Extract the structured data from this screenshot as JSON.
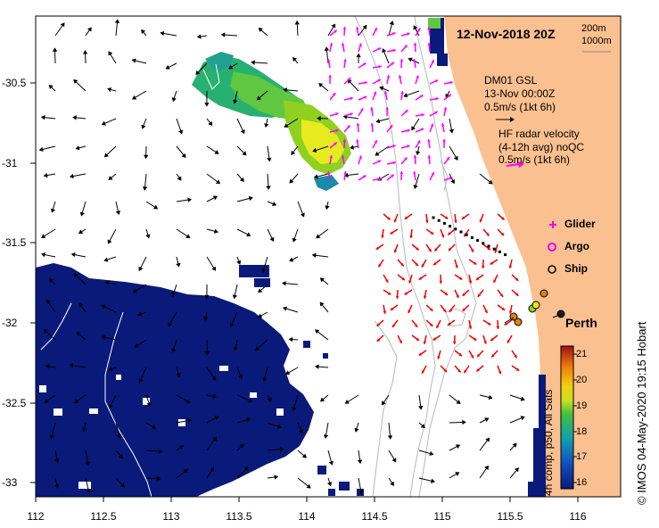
{
  "title": "12-Nov-2018 20Z",
  "depth_legend": {
    "c200": "200m",
    "c1000": "1000m"
  },
  "model_legend": {
    "line1": "DM01 GSL",
    "line2": "13-Nov 00:00Z",
    "line3": "0.5m/s (1kt 6h)"
  },
  "radar_legend": {
    "line1": "HF radar velocity",
    "line2": "(4-12h avg) noQC",
    "line3": "0.5m/s (1kt 6h)"
  },
  "platforms": {
    "glider": "Glider",
    "argo": "Argo",
    "ship": "Ship"
  },
  "place": "Perth",
  "colorbar": {
    "ticks": [
      "21",
      "20",
      "19",
      "18",
      "17",
      "16"
    ],
    "label": "4h comp, p50, All Sats"
  },
  "credit": "© IMOS 04-May-2020 19:15 Hobart",
  "axes": {
    "x_ticks": [
      "112",
      "112.5",
      "113",
      "113.5",
      "114",
      "114.5",
      "115",
      "115.5",
      "116"
    ],
    "y_ticks": [
      "-30.5",
      "-31",
      "-31.5",
      "-32",
      "-32.5",
      "-33"
    ],
    "x_range": [
      112,
      116.3
    ],
    "y_range": [
      -33.2,
      -30.1
    ]
  },
  "colors": {
    "land": "#fbc090",
    "cloud": "#0a1a7a",
    "model_arrow": "#000000",
    "radar_offshore": "#ff00ff",
    "radar_inshore": "#ee0000",
    "glider": "#ee00ee",
    "argo": "#ee00ee",
    "ship": "#000000"
  }
}
